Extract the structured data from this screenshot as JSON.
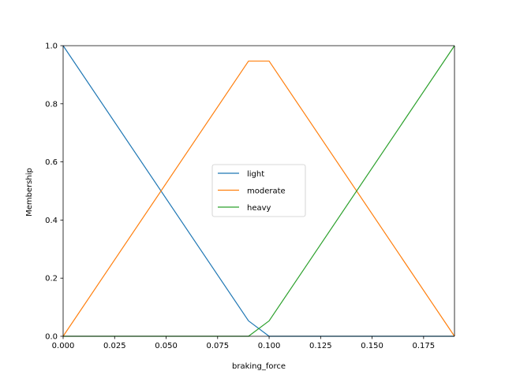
{
  "chart_data": {
    "type": "line",
    "title": "",
    "xlabel": "braking_force",
    "ylabel": "Membership",
    "xlim": [
      0,
      0.19
    ],
    "ylim": [
      0,
      1.0
    ],
    "xticks": [
      0.0,
      0.025,
      0.05,
      0.075,
      0.1,
      0.125,
      0.15,
      0.175
    ],
    "xtick_labels": [
      "0.000",
      "0.025",
      "0.050",
      "0.075",
      "0.100",
      "0.125",
      "0.150",
      "0.175"
    ],
    "yticks": [
      0.0,
      0.2,
      0.4,
      0.6,
      0.8,
      1.0
    ],
    "ytick_labels": [
      "0.0",
      "0.2",
      "0.4",
      "0.6",
      "0.8",
      "1.0"
    ],
    "grid": false,
    "legend_position": "center",
    "series": [
      {
        "name": "light",
        "color": "#1f77b4",
        "x": [
          0.0,
          0.09,
          0.1,
          0.19
        ],
        "y": [
          1.0,
          0.053,
          0.0,
          0.0
        ]
      },
      {
        "name": "moderate",
        "color": "#ff7f0e",
        "x": [
          0.0,
          0.09,
          0.1,
          0.19
        ],
        "y": [
          0.0,
          0.947,
          0.947,
          0.0
        ]
      },
      {
        "name": "heavy",
        "color": "#2ca02c",
        "x": [
          0.0,
          0.09,
          0.1,
          0.19
        ],
        "y": [
          0.0,
          0.0,
          0.053,
          1.0
        ]
      }
    ]
  }
}
